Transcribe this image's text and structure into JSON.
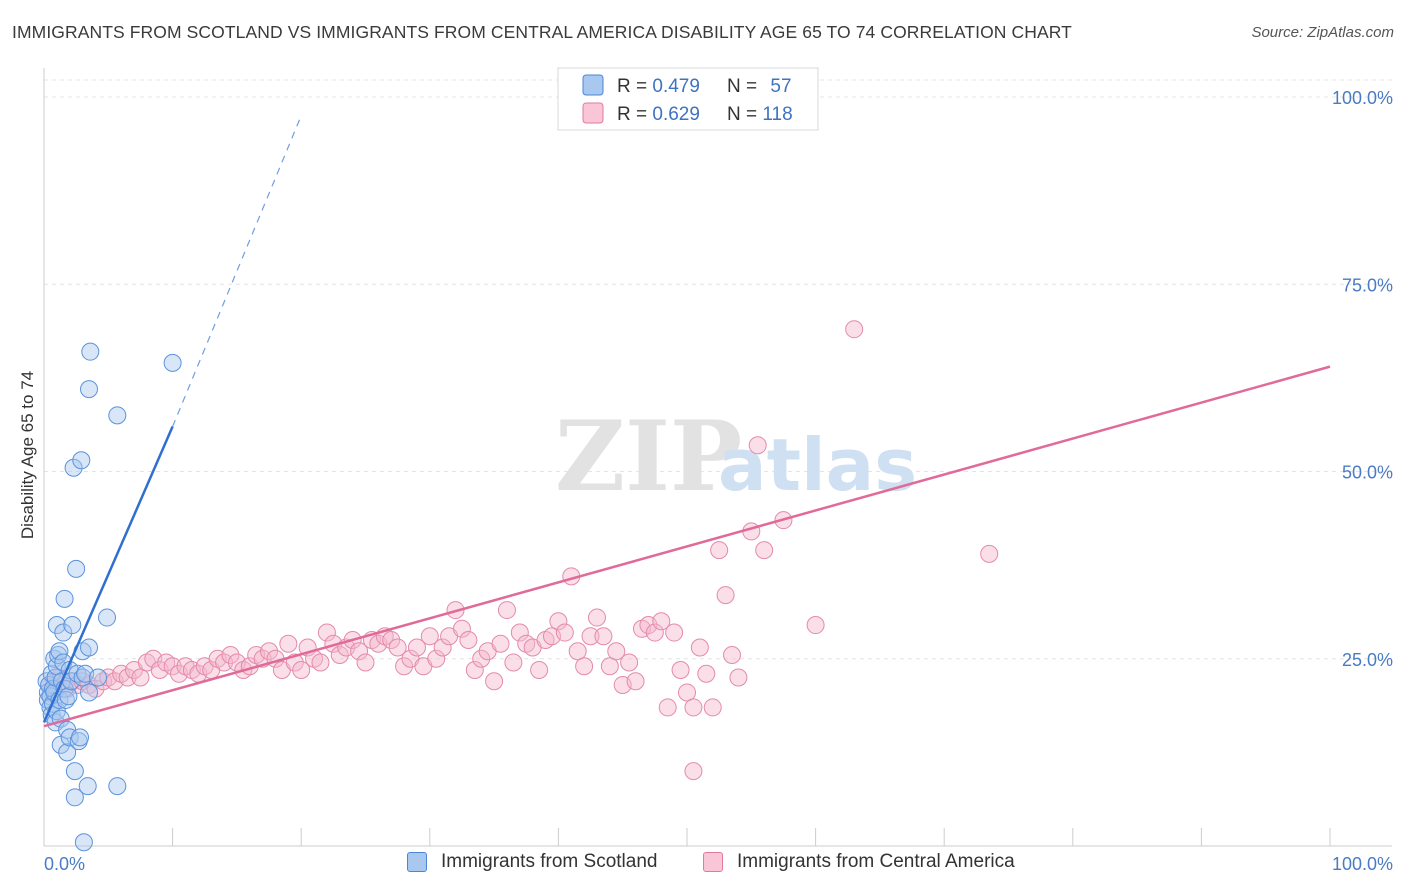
{
  "title": "IMMIGRANTS FROM SCOTLAND VS IMMIGRANTS FROM CENTRAL AMERICA DISABILITY AGE 65 TO 74 CORRELATION CHART",
  "source": "Source: ZipAtlas.com",
  "watermark": {
    "zip": "ZIP",
    "atlas": "atlas"
  },
  "colors": {
    "blue": "#4a86d8",
    "blue_fill": "#a9c8f0",
    "pink": "#e07aa0",
    "pink_fill": "#f5b8cc",
    "axis_text": "#4a7bc4"
  },
  "legend": {
    "rows": [
      {
        "r_label": "R = ",
        "r_value": "0.479",
        "n_label": "N = ",
        "n_value": "57"
      },
      {
        "r_label": "R = ",
        "r_value": "0.629",
        "n_label": "N = ",
        "n_value": "118"
      }
    ]
  },
  "chart_data": {
    "type": "scatter",
    "title": "IMMIGRANTS FROM SCOTLAND VS IMMIGRANTS FROM CENTRAL AMERICA DISABILITY AGE 65 TO 74 CORRELATION CHART",
    "xlabel": "",
    "ylabel": "Disability Age 65 to 74",
    "xlim": [
      0,
      100
    ],
    "ylim": [
      0,
      100
    ],
    "x_tick_labels": [
      "0.0%",
      "100.0%"
    ],
    "y_ticks": [
      25,
      50,
      75,
      100
    ],
    "y_tick_labels": [
      "25.0%",
      "50.0%",
      "75.0%",
      "100.0%"
    ],
    "grid": true,
    "legend_position": "top-center",
    "series": [
      {
        "name": "Immigrants from Scotland",
        "color": "#4a86d8",
        "R": 0.479,
        "N": 57,
        "trend": {
          "x": [
            0,
            10
          ],
          "y": [
            16.5,
            56.0
          ],
          "dashed_to": [
            20,
            97.5
          ]
        },
        "points": [
          [
            0.2,
            22.0
          ],
          [
            0.3,
            20.5
          ],
          [
            0.3,
            19.5
          ],
          [
            0.4,
            21.5
          ],
          [
            0.5,
            20.0
          ],
          [
            0.5,
            18.5
          ],
          [
            0.6,
            23.0
          ],
          [
            0.6,
            17.5
          ],
          [
            0.7,
            19.0
          ],
          [
            0.7,
            21.0
          ],
          [
            0.8,
            25.0
          ],
          [
            0.8,
            20.5
          ],
          [
            0.9,
            22.5
          ],
          [
            0.9,
            16.5
          ],
          [
            1.0,
            18.0
          ],
          [
            1.0,
            24.0
          ],
          [
            1.0,
            29.5
          ],
          [
            1.1,
            25.5
          ],
          [
            1.2,
            19.5
          ],
          [
            1.2,
            26.0
          ],
          [
            1.3,
            13.5
          ],
          [
            1.3,
            17.0
          ],
          [
            1.4,
            22.0
          ],
          [
            1.5,
            28.5
          ],
          [
            1.5,
            24.5
          ],
          [
            1.6,
            33.0
          ],
          [
            1.6,
            21.0
          ],
          [
            1.7,
            19.5
          ],
          [
            1.8,
            12.5
          ],
          [
            1.8,
            15.5
          ],
          [
            1.9,
            20.0
          ],
          [
            2.0,
            23.5
          ],
          [
            2.0,
            14.5
          ],
          [
            2.1,
            22.0
          ],
          [
            2.2,
            29.5
          ],
          [
            2.3,
            50.5
          ],
          [
            2.4,
            10.0
          ],
          [
            2.4,
            6.5
          ],
          [
            2.5,
            37.0
          ],
          [
            2.6,
            23.0
          ],
          [
            2.7,
            14.0
          ],
          [
            2.8,
            14.5
          ],
          [
            2.9,
            51.5
          ],
          [
            3.0,
            26.0
          ],
          [
            3.0,
            22.5
          ],
          [
            3.1,
            0.5
          ],
          [
            3.2,
            23.0
          ],
          [
            3.4,
            8.0
          ],
          [
            3.5,
            26.5
          ],
          [
            3.5,
            61.0
          ],
          [
            3.5,
            20.5
          ],
          [
            3.6,
            66.0
          ],
          [
            4.2,
            22.5
          ],
          [
            4.9,
            30.5
          ],
          [
            5.7,
            8.0
          ],
          [
            5.7,
            57.5
          ],
          [
            10.0,
            64.5
          ]
        ]
      },
      {
        "name": "Immigrants from Central America",
        "color": "#e07aa0",
        "R": 0.629,
        "N": 118,
        "trend": {
          "x": [
            0,
            100
          ],
          "y": [
            16.0,
            64.0
          ]
        },
        "points": [
          [
            0.4,
            21.5
          ],
          [
            0.6,
            20.5
          ],
          [
            0.8,
            22.0
          ],
          [
            1.0,
            21.0
          ],
          [
            1.2,
            22.5
          ],
          [
            1.5,
            21.5
          ],
          [
            1.8,
            21.0
          ],
          [
            2.2,
            22.0
          ],
          [
            2.6,
            21.5
          ],
          [
            3.0,
            22.0
          ],
          [
            3.5,
            21.5
          ],
          [
            4.0,
            21.0
          ],
          [
            4.6,
            22.0
          ],
          [
            5.0,
            22.5
          ],
          [
            5.5,
            22.0
          ],
          [
            6.0,
            23.0
          ],
          [
            6.5,
            22.5
          ],
          [
            7.0,
            23.5
          ],
          [
            7.5,
            22.5
          ],
          [
            8.0,
            24.5
          ],
          [
            8.5,
            25.0
          ],
          [
            9.0,
            23.5
          ],
          [
            9.5,
            24.5
          ],
          [
            10.0,
            24.0
          ],
          [
            10.5,
            23.0
          ],
          [
            11.0,
            24.0
          ],
          [
            11.5,
            23.5
          ],
          [
            12.0,
            23.0
          ],
          [
            12.5,
            24.0
          ],
          [
            13.0,
            23.5
          ],
          [
            13.5,
            25.0
          ],
          [
            14.0,
            24.5
          ],
          [
            14.5,
            25.5
          ],
          [
            15.0,
            24.5
          ],
          [
            15.5,
            23.5
          ],
          [
            16.0,
            24.0
          ],
          [
            16.5,
            25.5
          ],
          [
            17.0,
            25.0
          ],
          [
            17.5,
            26.0
          ],
          [
            18.0,
            25.0
          ],
          [
            18.5,
            23.5
          ],
          [
            19.0,
            27.0
          ],
          [
            19.5,
            24.5
          ],
          [
            20.0,
            23.5
          ],
          [
            20.5,
            26.5
          ],
          [
            21.0,
            25.0
          ],
          [
            21.5,
            24.5
          ],
          [
            22.0,
            28.5
          ],
          [
            22.5,
            27.0
          ],
          [
            23.0,
            25.5
          ],
          [
            23.5,
            26.5
          ],
          [
            24.0,
            27.5
          ],
          [
            24.5,
            26.0
          ],
          [
            25.0,
            24.5
          ],
          [
            25.5,
            27.5
          ],
          [
            26.0,
            27.0
          ],
          [
            26.5,
            28.0
          ],
          [
            27.0,
            27.5
          ],
          [
            27.5,
            26.5
          ],
          [
            28.0,
            24.0
          ],
          [
            28.5,
            25.0
          ],
          [
            29.0,
            26.5
          ],
          [
            29.5,
            24.0
          ],
          [
            30.0,
            28.0
          ],
          [
            30.5,
            25.0
          ],
          [
            31.0,
            26.5
          ],
          [
            31.5,
            28.0
          ],
          [
            32.0,
            31.5
          ],
          [
            32.5,
            29.0
          ],
          [
            33.0,
            27.5
          ],
          [
            33.5,
            23.5
          ],
          [
            34.0,
            25.0
          ],
          [
            34.5,
            26.0
          ],
          [
            35.0,
            22.0
          ],
          [
            35.5,
            27.0
          ],
          [
            36.0,
            31.5
          ],
          [
            36.5,
            24.5
          ],
          [
            37.0,
            28.5
          ],
          [
            37.5,
            27.0
          ],
          [
            38.0,
            26.5
          ],
          [
            38.5,
            23.5
          ],
          [
            39.0,
            27.5
          ],
          [
            39.5,
            28.0
          ],
          [
            40.0,
            30.0
          ],
          [
            40.5,
            28.5
          ],
          [
            41.0,
            36.0
          ],
          [
            41.5,
            26.0
          ],
          [
            42.0,
            24.0
          ],
          [
            42.5,
            28.0
          ],
          [
            43.0,
            30.5
          ],
          [
            43.5,
            28.0
          ],
          [
            44.0,
            24.0
          ],
          [
            44.5,
            26.0
          ],
          [
            45.0,
            21.5
          ],
          [
            45.5,
            24.5
          ],
          [
            46.0,
            22.0
          ],
          [
            46.5,
            29.0
          ],
          [
            47.0,
            29.5
          ],
          [
            47.5,
            28.5
          ],
          [
            48.0,
            30.0
          ],
          [
            48.5,
            18.5
          ],
          [
            49.0,
            28.5
          ],
          [
            49.5,
            23.5
          ],
          [
            50.0,
            20.5
          ],
          [
            50.5,
            10.0
          ],
          [
            50.5,
            18.5
          ],
          [
            51.0,
            26.5
          ],
          [
            51.5,
            23.0
          ],
          [
            52.0,
            18.5
          ],
          [
            52.5,
            39.5
          ],
          [
            53.0,
            33.5
          ],
          [
            53.5,
            25.5
          ],
          [
            54.0,
            22.5
          ],
          [
            55.0,
            42.0
          ],
          [
            55.5,
            53.5
          ],
          [
            56.0,
            39.5
          ],
          [
            57.5,
            43.5
          ],
          [
            60.0,
            29.5
          ],
          [
            63.0,
            69.0
          ],
          [
            73.5,
            39.0
          ]
        ]
      }
    ]
  }
}
